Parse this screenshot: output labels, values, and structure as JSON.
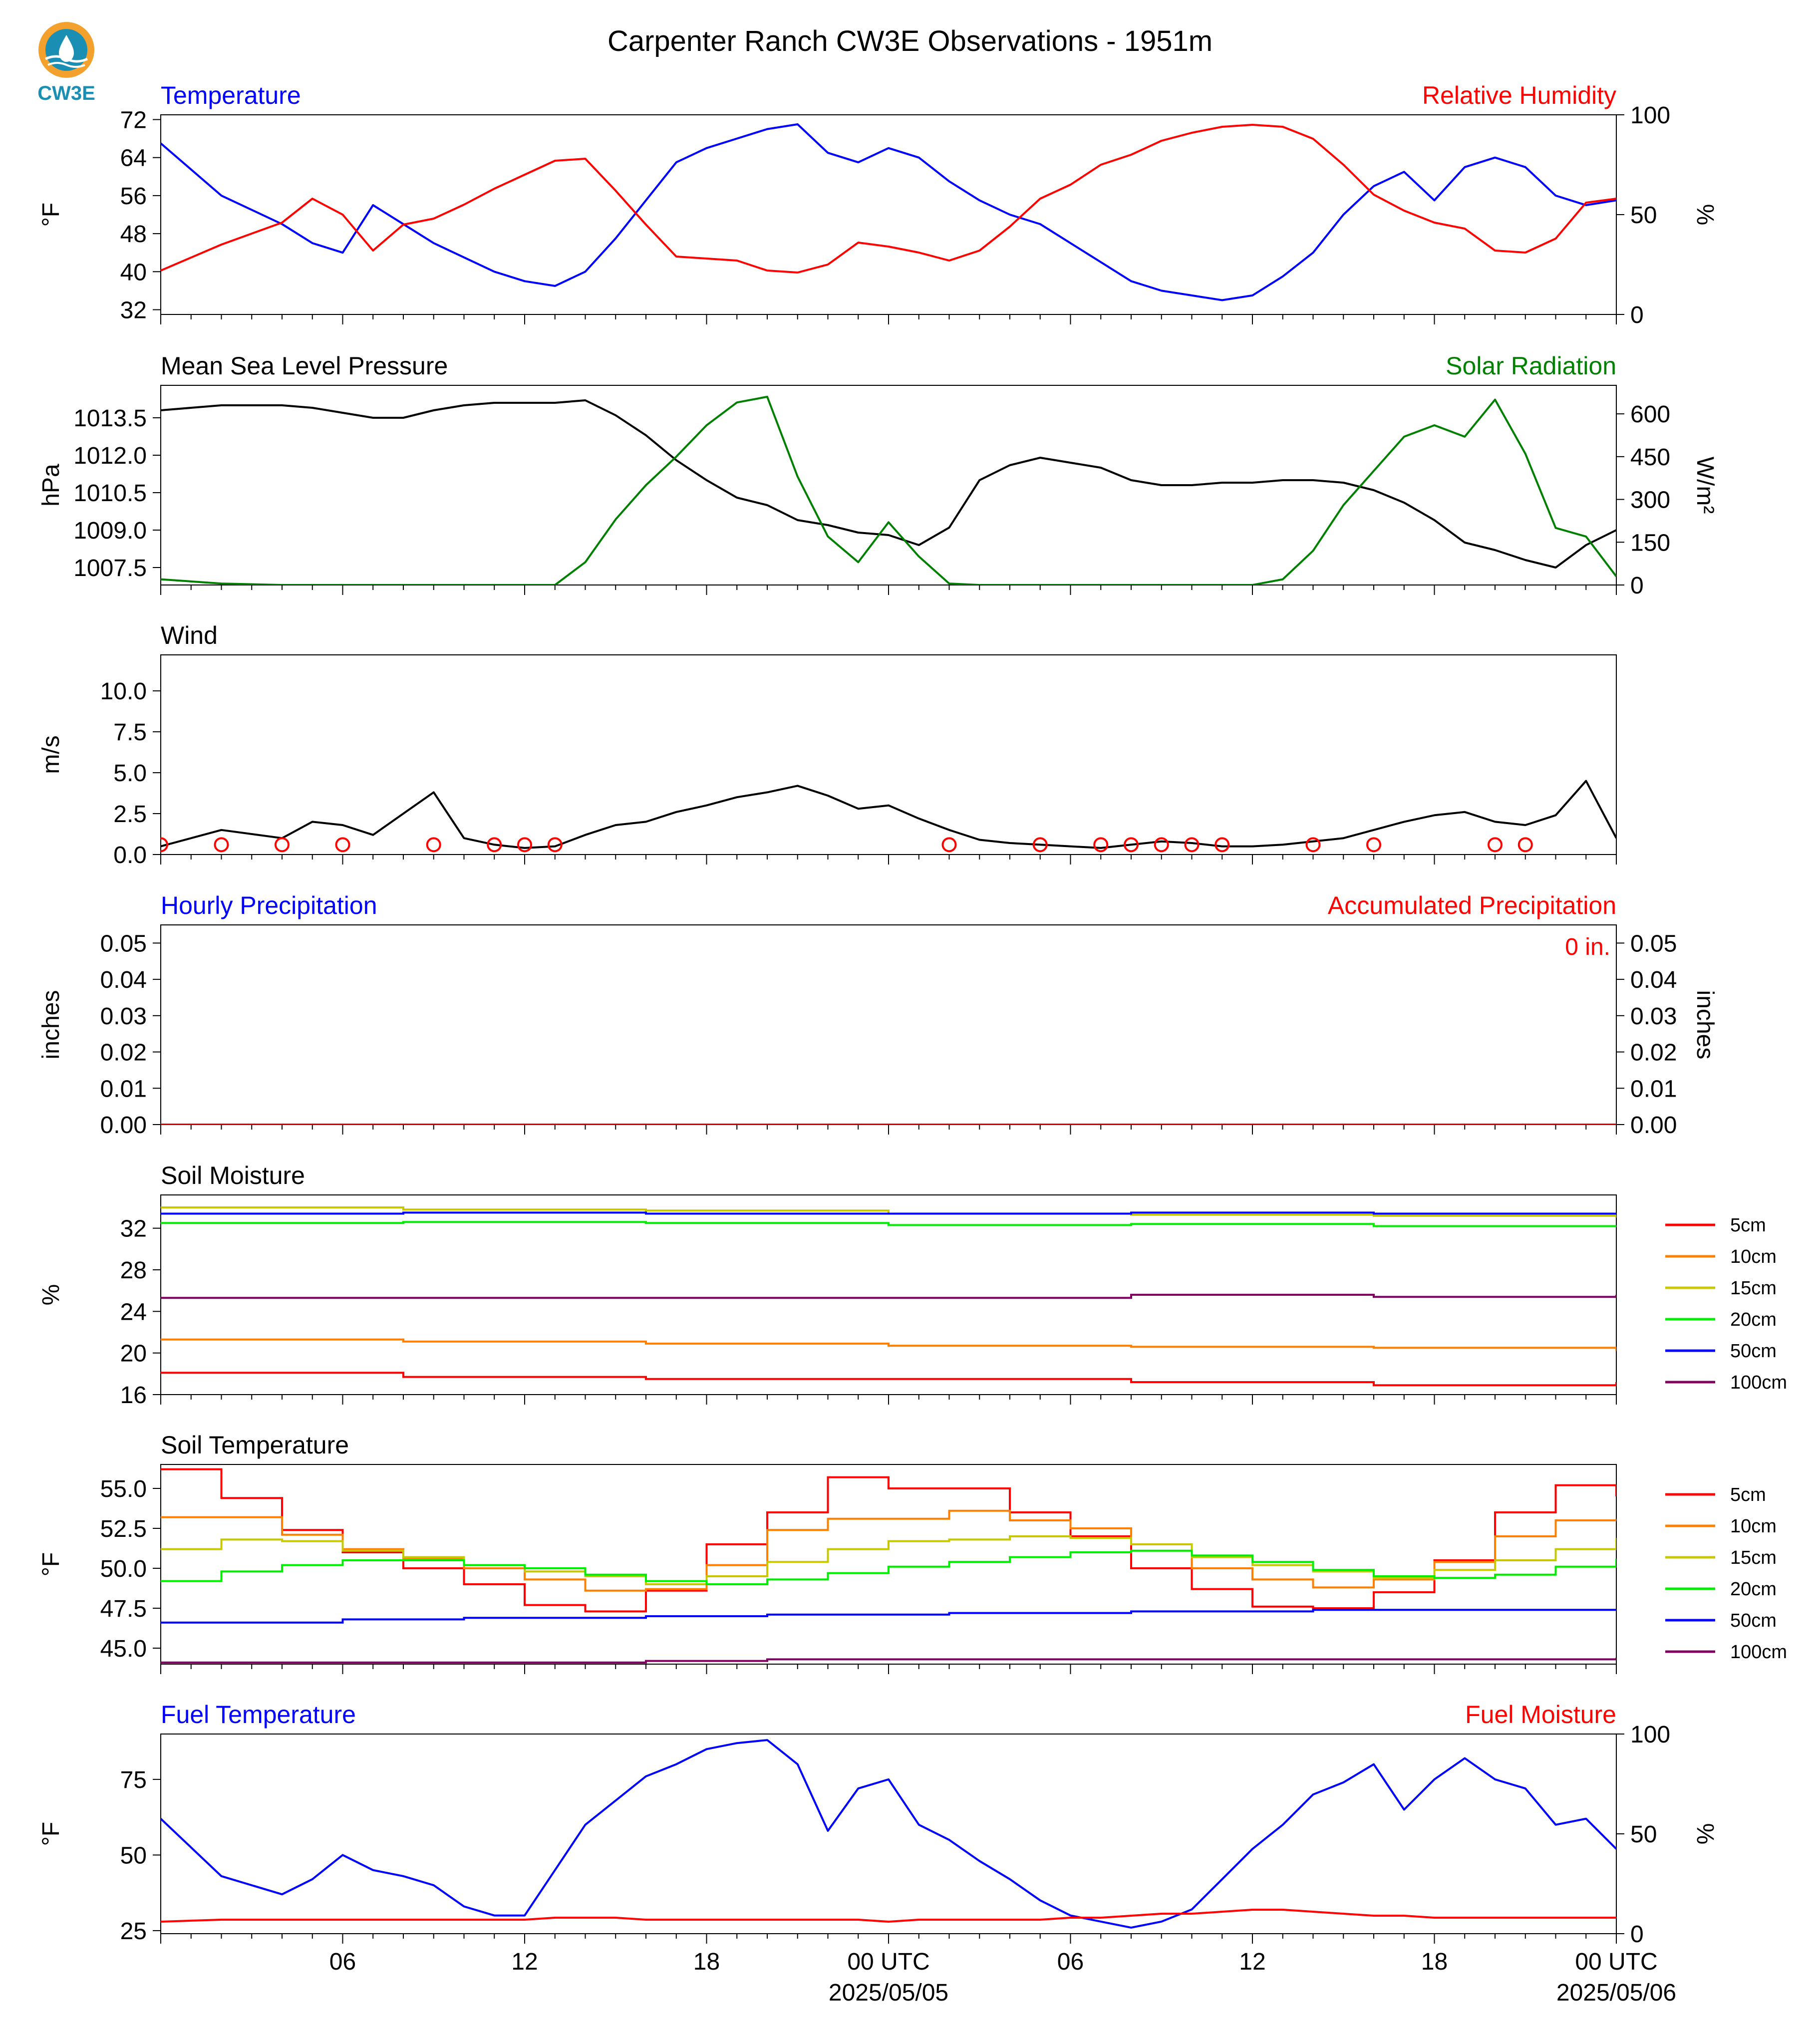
{
  "title": "Carpenter Ranch CW3E Observations - 1951m",
  "logo": {
    "text": "CW3E",
    "icon": "cw3e-logo-icon",
    "colors": [
      "#f3a12c",
      "#1b8fb3"
    ]
  },
  "colors": {
    "blue": "#0000ff",
    "red": "#ff0000",
    "green": "#008000",
    "black": "#000000"
  },
  "chart_data": [
    {
      "id": "temp_rh",
      "type": "line",
      "left_title": "Temperature",
      "right_title": "Relative Humidity",
      "ylabel": "°F",
      "ylabel_right": "%",
      "ylim": [
        31,
        73
      ],
      "yticks": [
        32,
        40,
        48,
        56,
        64,
        72
      ],
      "ylim_right": [
        0,
        100
      ],
      "yticks_right": [
        0,
        50,
        100
      ],
      "x": [
        0,
        2,
        4,
        5,
        6,
        7,
        8,
        9,
        10,
        11,
        12,
        13,
        14,
        15,
        16,
        17,
        18,
        19,
        20,
        21,
        22,
        23,
        24,
        25,
        26,
        27,
        28,
        29,
        30,
        31,
        32,
        33,
        34,
        35,
        36,
        37,
        38,
        39,
        40,
        41,
        42,
        43,
        44,
        45,
        46,
        47,
        48
      ],
      "series": [
        {
          "name": "Temperature",
          "color": "#0000ff",
          "axis": "left",
          "values": [
            67,
            56,
            50,
            46,
            44,
            54,
            50,
            46,
            43,
            40,
            38,
            37,
            40,
            47,
            55,
            63,
            66,
            68,
            70,
            71,
            65,
            63,
            66,
            64,
            59,
            55,
            52,
            50,
            46,
            42,
            38,
            36,
            35,
            34,
            35,
            39,
            44,
            52,
            58,
            61,
            55,
            62,
            64,
            62,
            56,
            54,
            55
          ]
        },
        {
          "name": "Relative Humidity",
          "color": "#ff0000",
          "axis": "right",
          "values": [
            22,
            35,
            46,
            58,
            50,
            32,
            45,
            48,
            55,
            63,
            70,
            77,
            78,
            62,
            45,
            29,
            28,
            27,
            22,
            21,
            25,
            36,
            34,
            31,
            27,
            32,
            44,
            58,
            65,
            75,
            80,
            87,
            91,
            94,
            95,
            94,
            88,
            75,
            60,
            52,
            46,
            43,
            32,
            31,
            38,
            56,
            58
          ]
        }
      ]
    },
    {
      "id": "pressure_solar",
      "type": "line",
      "left_title": "Mean Sea Level Pressure",
      "right_title": "Solar Radiation",
      "ylabel": "hPa",
      "ylabel_right": "W/m²",
      "ylim": [
        1006.8,
        1014.8
      ],
      "yticks": [
        1007.5,
        1009.0,
        1010.5,
        1012.0,
        1013.5
      ],
      "ylim_right": [
        0,
        700
      ],
      "yticks_right": [
        0,
        150,
        300,
        450,
        600
      ],
      "x": [
        0,
        2,
        4,
        5,
        6,
        7,
        8,
        9,
        10,
        11,
        12,
        13,
        14,
        15,
        16,
        17,
        18,
        19,
        20,
        21,
        22,
        23,
        24,
        25,
        26,
        27,
        28,
        29,
        30,
        31,
        32,
        33,
        34,
        35,
        36,
        37,
        38,
        39,
        40,
        41,
        42,
        43,
        44,
        45,
        46,
        47,
        48
      ],
      "series": [
        {
          "name": "Mean Sea Level Pressure",
          "color": "#000000",
          "axis": "left",
          "values": [
            1013.8,
            1014.0,
            1014.0,
            1013.9,
            1013.7,
            1013.5,
            1013.5,
            1013.8,
            1014.0,
            1014.1,
            1014.1,
            1014.1,
            1014.2,
            1013.6,
            1012.8,
            1011.8,
            1011.0,
            1010.3,
            1010.0,
            1009.4,
            1009.2,
            1008.9,
            1008.8,
            1008.4,
            1009.1,
            1011.0,
            1011.6,
            1011.9,
            1011.7,
            1011.5,
            1011.0,
            1010.8,
            1010.8,
            1010.9,
            1010.9,
            1011.0,
            1011.0,
            1010.9,
            1010.6,
            1010.1,
            1009.4,
            1008.5,
            1008.2,
            1007.8,
            1007.5,
            1008.4,
            1009.0
          ]
        },
        {
          "name": "Solar Radiation",
          "color": "#008000",
          "axis": "right",
          "values": [
            20,
            5,
            0,
            0,
            0,
            0,
            0,
            0,
            0,
            0,
            0,
            0,
            80,
            230,
            350,
            450,
            560,
            640,
            660,
            380,
            170,
            80,
            220,
            100,
            5,
            0,
            0,
            0,
            0,
            0,
            0,
            0,
            0,
            0,
            0,
            20,
            120,
            280,
            400,
            520,
            560,
            520,
            650,
            460,
            200,
            170,
            30
          ]
        }
      ]
    },
    {
      "id": "wind",
      "type": "line",
      "left_title": "Wind",
      "ylabel": "m/s",
      "ylim": [
        0,
        12.2
      ],
      "yticks": [
        0.0,
        2.5,
        5.0,
        7.5,
        10.0
      ],
      "x": [
        0,
        2,
        4,
        5,
        6,
        7,
        8,
        9,
        10,
        11,
        12,
        13,
        14,
        15,
        16,
        17,
        18,
        19,
        20,
        21,
        22,
        23,
        24,
        25,
        26,
        27,
        28,
        29,
        30,
        31,
        32,
        33,
        34,
        35,
        36,
        37,
        38,
        39,
        40,
        41,
        42,
        43,
        44,
        45,
        46,
        47,
        48
      ],
      "series": [
        {
          "name": "Wind",
          "color": "#000000",
          "axis": "left",
          "values": [
            0.5,
            1.5,
            1.0,
            2.0,
            1.8,
            1.2,
            2.5,
            3.8,
            1.0,
            0.6,
            0.4,
            0.5,
            1.2,
            1.8,
            2.0,
            2.6,
            3.0,
            3.5,
            3.8,
            4.2,
            3.6,
            2.8,
            3.0,
            2.2,
            1.5,
            0.9,
            0.7,
            0.6,
            0.5,
            0.4,
            0.6,
            0.8,
            0.7,
            0.5,
            0.5,
            0.6,
            0.8,
            1.0,
            1.5,
            2.0,
            2.4,
            2.6,
            2.0,
            1.8,
            2.4,
            4.5,
            1.0
          ]
        }
      ],
      "wind_barbs": {
        "color": "#ff0000",
        "calm_times": [
          0,
          2,
          4,
          6,
          9,
          11,
          12,
          13,
          26,
          29,
          31,
          32,
          33,
          34,
          35,
          38,
          40,
          44,
          45
        ]
      }
    },
    {
      "id": "precip",
      "type": "line",
      "left_title": "Hourly Precipitation",
      "right_title": "Accumulated Precipitation",
      "ylabel": "inches",
      "ylabel_right": "inches",
      "ylim": [
        0,
        0.055
      ],
      "yticks": [
        0.0,
        0.01,
        0.02,
        0.03,
        0.04,
        0.05
      ],
      "ylim_right": [
        0,
        0.055
      ],
      "yticks_right": [
        0.0,
        0.01,
        0.02,
        0.03,
        0.04,
        0.05
      ],
      "annotation": "0 in.",
      "x": [
        0,
        48
      ],
      "series": [
        {
          "name": "Hourly Precipitation",
          "color": "#0000ff",
          "axis": "left",
          "values": [
            0,
            0
          ]
        },
        {
          "name": "Accumulated Precipitation",
          "color": "#ff0000",
          "axis": "right",
          "values": [
            0,
            0
          ]
        }
      ]
    },
    {
      "id": "soil_moisture",
      "type": "line",
      "left_title": "Soil Moisture",
      "ylabel": "%",
      "ylim": [
        16,
        35.2
      ],
      "yticks": [
        16,
        20,
        24,
        28,
        32
      ],
      "x": [
        0,
        8,
        16,
        24,
        32,
        40,
        48
      ],
      "legend": "right",
      "series": [
        {
          "name": "5cm",
          "color": "#ff0000",
          "values": [
            18.1,
            17.7,
            17.5,
            17.5,
            17.2,
            16.9,
            17.2
          ]
        },
        {
          "name": "10cm",
          "color": "#ff8000",
          "values": [
            21.3,
            21.1,
            20.9,
            20.7,
            20.6,
            20.5,
            20.2
          ]
        },
        {
          "name": "15cm",
          "color": "#c8c800",
          "values": [
            34.0,
            33.8,
            33.7,
            33.4,
            33.3,
            33.2,
            33.0
          ]
        },
        {
          "name": "20cm",
          "color": "#00ee00",
          "values": [
            32.5,
            32.6,
            32.5,
            32.3,
            32.4,
            32.2,
            32.1
          ]
        },
        {
          "name": "50cm",
          "color": "#0000ff",
          "values": [
            33.4,
            33.5,
            33.4,
            33.4,
            33.5,
            33.4,
            33.3
          ]
        },
        {
          "name": "100cm",
          "color": "#800060",
          "values": [
            25.3,
            25.3,
            25.3,
            25.3,
            25.6,
            25.4,
            25.6
          ]
        }
      ]
    },
    {
      "id": "soil_temp",
      "type": "line",
      "left_title": "Soil Temperature",
      "ylabel": "°F",
      "ylim": [
        44.0,
        56.5
      ],
      "yticks": [
        45.0,
        47.5,
        50.0,
        52.5,
        55.0
      ],
      "x": [
        0,
        2,
        4,
        6,
        8,
        10,
        12,
        14,
        16,
        18,
        20,
        22,
        24,
        26,
        28,
        30,
        32,
        34,
        36,
        38,
        40,
        42,
        44,
        46,
        48
      ],
      "legend": "right",
      "series": [
        {
          "name": "5cm",
          "color": "#ff0000",
          "values": [
            56.2,
            54.4,
            52.4,
            51.0,
            50.0,
            49.0,
            47.7,
            47.3,
            48.6,
            51.5,
            53.5,
            55.7,
            55.0,
            55.0,
            53.5,
            52.0,
            50.0,
            48.7,
            47.6,
            47.5,
            48.5,
            50.5,
            53.5,
            55.2,
            54.5
          ]
        },
        {
          "name": "10cm",
          "color": "#ff8000",
          "values": [
            53.2,
            53.2,
            52.1,
            51.2,
            50.6,
            50.0,
            49.3,
            48.6,
            48.7,
            50.2,
            52.4,
            53.1,
            53.1,
            53.6,
            53.0,
            52.5,
            51.5,
            50.0,
            49.3,
            48.8,
            49.3,
            50.4,
            52.0,
            53.0,
            53.1
          ]
        },
        {
          "name": "15cm",
          "color": "#c8c800",
          "values": [
            51.2,
            51.8,
            51.7,
            51.1,
            50.7,
            50.2,
            49.8,
            49.5,
            49.0,
            49.5,
            50.4,
            51.2,
            51.7,
            51.8,
            52.0,
            51.9,
            51.5,
            50.7,
            50.2,
            49.8,
            49.4,
            49.9,
            50.5,
            51.2,
            51.9
          ]
        },
        {
          "name": "20cm",
          "color": "#00ee00",
          "values": [
            49.2,
            49.8,
            50.2,
            50.5,
            50.5,
            50.2,
            50.0,
            49.6,
            49.2,
            49.0,
            49.3,
            49.7,
            50.1,
            50.4,
            50.7,
            51.0,
            51.1,
            50.8,
            50.4,
            49.9,
            49.5,
            49.4,
            49.6,
            50.1,
            50.6
          ]
        },
        {
          "name": "50cm",
          "color": "#0000ff",
          "values": [
            46.6,
            46.6,
            46.6,
            46.8,
            46.8,
            46.9,
            46.9,
            46.9,
            47.0,
            47.0,
            47.1,
            47.1,
            47.1,
            47.2,
            47.2,
            47.2,
            47.3,
            47.3,
            47.3,
            47.4,
            47.4,
            47.4,
            47.4,
            47.4,
            47.4
          ]
        },
        {
          "name": "100cm",
          "color": "#800060",
          "values": [
            44.1,
            44.1,
            44.1,
            44.1,
            44.1,
            44.1,
            44.1,
            44.1,
            44.2,
            44.2,
            44.3,
            44.3,
            44.3,
            44.3,
            44.3,
            44.3,
            44.3,
            44.3,
            44.3,
            44.3,
            44.3,
            44.3,
            44.3,
            44.3,
            44.4
          ]
        }
      ]
    },
    {
      "id": "fuel",
      "type": "line",
      "left_title": "Fuel Temperature",
      "right_title": "Fuel Moisture",
      "ylabel": "°F",
      "ylabel_right": "%",
      "ylim": [
        24,
        90
      ],
      "yticks": [
        25,
        50,
        75
      ],
      "ylim_right": [
        0,
        100
      ],
      "yticks_right": [
        0,
        50,
        100
      ],
      "x": [
        0,
        2,
        4,
        5,
        6,
        7,
        8,
        9,
        10,
        11,
        12,
        13,
        14,
        15,
        16,
        17,
        18,
        19,
        20,
        21,
        22,
        23,
        24,
        25,
        26,
        27,
        28,
        29,
        30,
        31,
        32,
        33,
        34,
        35,
        36,
        37,
        38,
        39,
        40,
        41,
        42,
        43,
        44,
        45,
        46,
        47,
        48
      ],
      "series": [
        {
          "name": "Fuel Temperature",
          "color": "#0000ff",
          "axis": "left",
          "values": [
            62,
            43,
            37,
            42,
            50,
            45,
            43,
            40,
            33,
            30,
            30,
            45,
            60,
            68,
            76,
            80,
            85,
            87,
            88,
            80,
            58,
            72,
            75,
            60,
            55,
            48,
            42,
            35,
            30,
            28,
            26,
            28,
            32,
            42,
            52,
            60,
            70,
            74,
            80,
            65,
            75,
            82,
            75,
            72,
            60,
            62,
            52
          ]
        },
        {
          "name": "Fuel Moisture",
          "color": "#ff0000",
          "axis": "right",
          "values": [
            6,
            7,
            7,
            7,
            7,
            7,
            7,
            7,
            7,
            7,
            7,
            8,
            8,
            8,
            7,
            7,
            7,
            7,
            7,
            7,
            7,
            7,
            6,
            7,
            7,
            7,
            7,
            7,
            8,
            8,
            9,
            10,
            10,
            11,
            12,
            12,
            11,
            10,
            9,
            9,
            8,
            8,
            8,
            8,
            8,
            8,
            8
          ]
        }
      ]
    }
  ],
  "x_axis": {
    "hours": [
      6,
      12,
      18,
      24,
      30,
      36,
      42,
      48
    ],
    "labels": [
      "06",
      "12",
      "18",
      "00 UTC",
      "06",
      "12",
      "18",
      "00 UTC"
    ],
    "date_labels": {
      "24": "2025/05/05",
      "48": "2025/05/06"
    }
  }
}
